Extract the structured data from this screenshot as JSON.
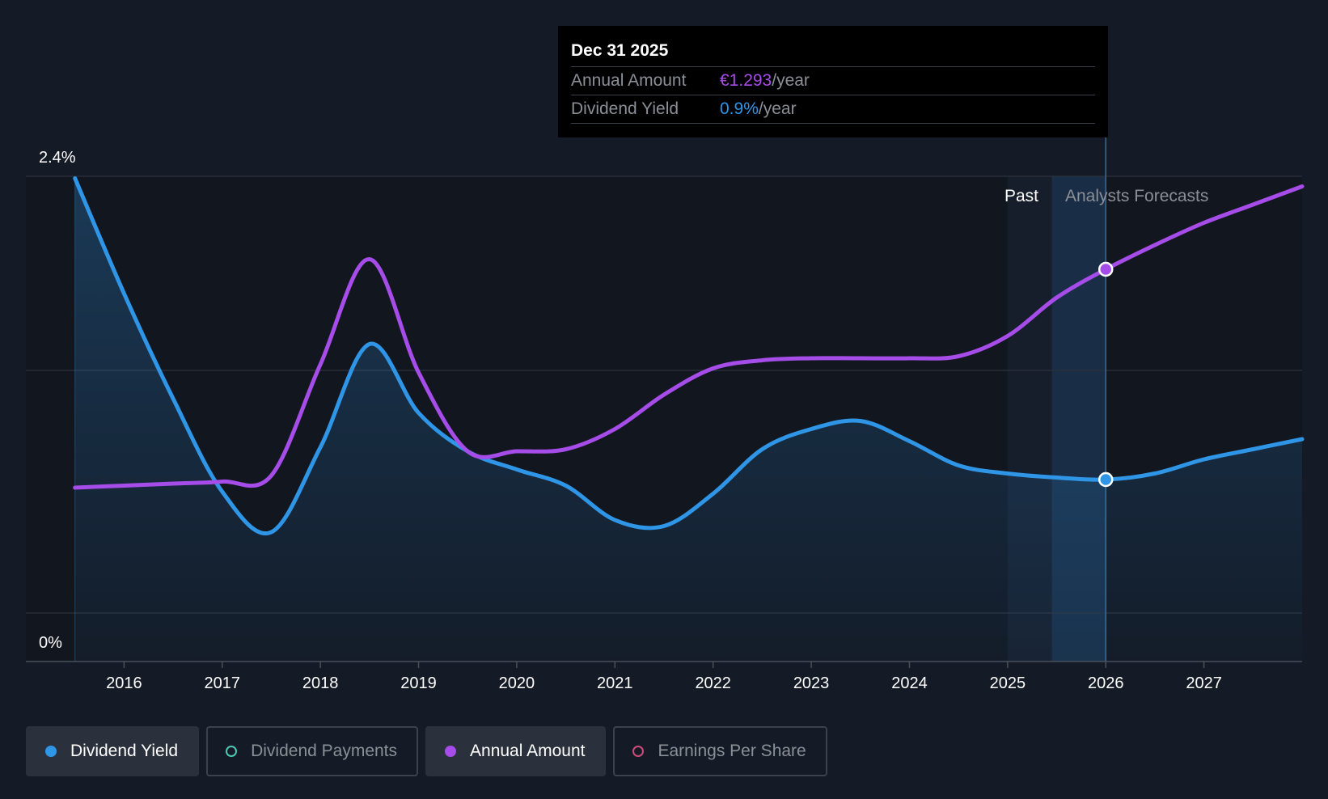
{
  "tooltip": {
    "date": "Dec 31 2025",
    "rows": [
      {
        "label": "Annual Amount",
        "value": "€1.293",
        "unit": "/year"
      },
      {
        "label": "Dividend Yield",
        "value": "0.9%",
        "unit": "/year"
      }
    ]
  },
  "legend": [
    {
      "label": "Dividend Yield",
      "color": "#2f95e6",
      "active": true,
      "style": "filled"
    },
    {
      "label": "Dividend Payments",
      "color": "#4fc7b5",
      "active": false,
      "style": "hollow"
    },
    {
      "label": "Annual Amount",
      "color": "#a64ce8",
      "active": true,
      "style": "filled"
    },
    {
      "label": "Earnings Per Share",
      "color": "#d04a7c",
      "active": false,
      "style": "hollow"
    }
  ],
  "chart_data": {
    "type": "line",
    "x_ticks": [
      "2016",
      "2017",
      "2018",
      "2019",
      "2020",
      "2021",
      "2022",
      "2023",
      "2024",
      "2025",
      "2026",
      "2027"
    ],
    "y_axis": {
      "top_label": "2.4%",
      "bottom_label": "0%",
      "ylim": [
        0,
        2.4
      ]
    },
    "xlim": [
      2015.0,
      2028.0
    ],
    "regions": {
      "past_label": "Past",
      "forecast_label": "Analysts Forecasts",
      "past_start": 2025.0,
      "forecast_start": 2025.45,
      "forecast_end": 2026.0
    },
    "series": [
      {
        "name": "Dividend Yield",
        "color": "#2f95e6",
        "filled": true,
        "x": [
          2015.5,
          2016.0,
          2016.5,
          2017.0,
          2017.5,
          2018.0,
          2018.5,
          2019.0,
          2019.5,
          2020.0,
          2020.5,
          2021.0,
          2021.5,
          2022.0,
          2022.5,
          2023.0,
          2023.5,
          2024.0,
          2024.5,
          2025.0,
          2025.5,
          2026.0,
          2026.5,
          2027.0,
          2027.5,
          2028.0
        ],
        "y": [
          2.39,
          1.82,
          1.3,
          0.84,
          0.64,
          1.06,
          1.57,
          1.23,
          1.04,
          0.95,
          0.87,
          0.7,
          0.67,
          0.83,
          1.05,
          1.15,
          1.19,
          1.09,
          0.97,
          0.93,
          0.91,
          0.9,
          0.93,
          1.0,
          1.05,
          1.1
        ]
      },
      {
        "name": "Annual Amount",
        "color": "#a64ce8",
        "filled": false,
        "x": [
          2015.5,
          2016.0,
          2016.5,
          2017.0,
          2017.5,
          2018.0,
          2018.5,
          2019.0,
          2019.5,
          2020.0,
          2020.5,
          2021.0,
          2021.5,
          2022.0,
          2022.5,
          2023.0,
          2023.5,
          2024.0,
          2024.5,
          2025.0,
          2025.5,
          2026.0,
          2026.5,
          2027.0,
          2027.5,
          2028.0
        ],
        "y": [
          0.86,
          0.87,
          0.88,
          0.89,
          0.92,
          1.47,
          1.99,
          1.43,
          1.04,
          1.04,
          1.05,
          1.15,
          1.32,
          1.45,
          1.49,
          1.5,
          1.5,
          1.5,
          1.51,
          1.61,
          1.8,
          1.94,
          2.06,
          2.17,
          2.26,
          2.35
        ]
      }
    ],
    "highlight_x": 2026.0,
    "grid": true,
    "legend_position": "bottom-left"
  }
}
